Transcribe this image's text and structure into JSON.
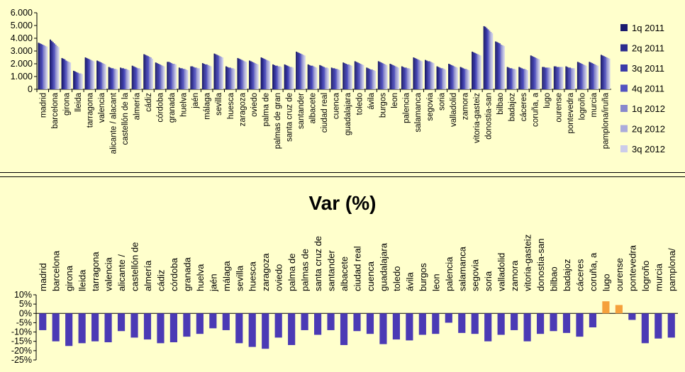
{
  "chart_data": [
    {
      "type": "bar",
      "title": "",
      "xlabel": "",
      "ylabel": "",
      "ylim": [
        0,
        6000
      ],
      "yticks": [
        "0",
        "1.000",
        "2.000",
        "3.000",
        "4.000",
        "5.000",
        "6.000"
      ],
      "legend_position": "right",
      "categories": [
        "madrid",
        "barcelona",
        "girona",
        "lleida",
        "tarragona",
        "valencia",
        "alicante / alacant",
        "castellón de la",
        "almería",
        "cádiz",
        "córdoba",
        "granada",
        "huelva",
        "jaén",
        "málaga",
        "sevilla",
        "huesca",
        "zaragoza",
        "oviedo",
        "palma de",
        "palmas de gran",
        "santa cruz de",
        "santander",
        "albacete",
        "ciudad real",
        "cuenca",
        "guadalajara",
        "toledo",
        "ávila",
        "burgos",
        "leon",
        "palencia",
        "salamanca",
        "segovia",
        "soria",
        "valladolid",
        "zamora",
        "vitoria-gasteiz",
        "donostia-san",
        "bilbao",
        "badajoz",
        "cáceres",
        "coruña, a",
        "lugo",
        "ourense",
        "pontevedra",
        "logroño",
        "murcia",
        "pamplona/iruña"
      ],
      "series": [
        {
          "name": "1q 2011",
          "color": "#1a1a6e",
          "values": [
            3650,
            3900,
            2450,
            1450,
            2500,
            2250,
            1750,
            1700,
            1850,
            2750,
            2100,
            2150,
            1700,
            1800,
            2050,
            2800,
            1800,
            2450,
            2250,
            2500,
            1950,
            1950,
            2950,
            1950,
            1900,
            1700,
            2100,
            2200,
            1700,
            2200,
            2000,
            1800,
            2500,
            2300,
            1800,
            2000,
            1750,
            2950,
            4950,
            3750,
            1750,
            1750,
            2650,
            1750,
            1800,
            1800,
            2150,
            2150,
            2700
          ]
        },
        {
          "name": "2q 2011",
          "color": "#2b2b8e",
          "values": [
            3600,
            3800,
            2400,
            1400,
            2450,
            2200,
            1700,
            1650,
            1800,
            2700,
            2050,
            2150,
            1650,
            1800,
            2000,
            2750,
            1750,
            2400,
            2200,
            2450,
            1900,
            1900,
            2900,
            1900,
            1850,
            1650,
            2050,
            2150,
            1650,
            2150,
            1950,
            1750,
            2450,
            2250,
            1750,
            1950,
            1700,
            2900,
            4900,
            3700,
            1700,
            1700,
            2600,
            1750,
            1800,
            1750,
            2100,
            2100,
            2650
          ]
        },
        {
          "name": "3q 2011",
          "color": "#3a3aa8",
          "values": [
            3550,
            3700,
            2350,
            1350,
            2400,
            2150,
            1650,
            1650,
            1750,
            2650,
            2000,
            2100,
            1650,
            1750,
            1950,
            2700,
            1700,
            2350,
            2150,
            2400,
            1850,
            1850,
            2850,
            1850,
            1800,
            1650,
            2000,
            2100,
            1600,
            2100,
            1900,
            1700,
            2400,
            2200,
            1700,
            1900,
            1650,
            2850,
            4800,
            3650,
            1650,
            1650,
            2550,
            1700,
            1750,
            1700,
            2050,
            2050,
            2600
          ]
        },
        {
          "name": "4q 2011",
          "color": "#5252c0",
          "values": [
            3500,
            3600,
            2250,
            1300,
            2350,
            2100,
            1650,
            1600,
            1700,
            2600,
            1950,
            2050,
            1600,
            1700,
            1950,
            2650,
            1700,
            2300,
            2100,
            2350,
            1850,
            1800,
            2800,
            1850,
            1750,
            1600,
            1950,
            2050,
            1550,
            2050,
            1850,
            1700,
            2350,
            2200,
            1650,
            1850,
            1600,
            2800,
            4700,
            3600,
            1650,
            1600,
            2500,
            1700,
            1750,
            1700,
            2000,
            2000,
            2550
          ]
        },
        {
          "name": "1q 2012",
          "color": "#8888cc",
          "values": [
            3450,
            3500,
            2200,
            1250,
            2300,
            2050,
            1600,
            1600,
            1650,
            2550,
            1900,
            2000,
            1600,
            1700,
            1900,
            2600,
            1650,
            2250,
            2050,
            2300,
            1800,
            1750,
            2750,
            1800,
            1700,
            1600,
            1950,
            2000,
            1550,
            2000,
            1800,
            1650,
            2300,
            2150,
            1650,
            1800,
            1600,
            2750,
            4600,
            3500,
            1600,
            1600,
            2450,
            1700,
            1750,
            1650,
            1950,
            1950,
            2500
          ]
        },
        {
          "name": "2q 2012",
          "color": "#ababdb",
          "values": [
            3400,
            3400,
            2150,
            1250,
            2250,
            2000,
            1600,
            1550,
            1650,
            2500,
            1850,
            2000,
            1550,
            1650,
            1850,
            2550,
            1650,
            2200,
            2000,
            2250,
            1800,
            1750,
            2700,
            1750,
            1700,
            1550,
            1900,
            1950,
            1500,
            1950,
            1750,
            1650,
            2250,
            2100,
            1600,
            1750,
            1550,
            2700,
            4500,
            3450,
            1600,
            1550,
            2400,
            1700,
            1750,
            1650,
            1900,
            1900,
            2450
          ]
        },
        {
          "name": "3q 2012",
          "color": "#ccccea",
          "values": [
            3350,
            3300,
            2100,
            1200,
            2200,
            1950,
            1550,
            1500,
            1600,
            2400,
            1800,
            1950,
            1500,
            1650,
            1800,
            2500,
            1600,
            2150,
            1950,
            2200,
            1750,
            1700,
            2650,
            1700,
            1650,
            1500,
            1850,
            1900,
            1450,
            1900,
            1700,
            1600,
            2200,
            2050,
            1550,
            1700,
            1500,
            2650,
            4400,
            3400,
            1550,
            1500,
            2350,
            1650,
            1750,
            1650,
            1850,
            1850,
            2400
          ]
        }
      ]
    },
    {
      "type": "bar",
      "title": "Var (%)",
      "xlabel": "",
      "ylabel": "",
      "ylim": [
        -25,
        10
      ],
      "yticks": [
        "-25%",
        "-20%",
        "-15%",
        "-10%",
        "-5%",
        "0%",
        "5%",
        "10%"
      ],
      "categories": [
        "madrid",
        "barcelona",
        "girona",
        "lleida",
        "tarragona",
        "valencia",
        "alicante /",
        "castellón de",
        "almería",
        "cádiz",
        "córdoba",
        "granada",
        "huelva",
        "jaén",
        "málaga",
        "sevilla",
        "huesca",
        "zaragoza",
        "oviedo",
        "palma de",
        "palmas de",
        "santa cruz de",
        "santander",
        "albacete",
        "ciudad real",
        "cuenca",
        "guadalajara",
        "toledo",
        "ávila",
        "burgos",
        "leon",
        "palencia",
        "salamanca",
        "segovia",
        "soria",
        "valladolid",
        "zamora",
        "vitoria-gasteiz",
        "donostia-san",
        "bilbao",
        "badajoz",
        "cáceres",
        "coruña, a",
        "lugo",
        "ourense",
        "pontevedra",
        "logroño",
        "murcia",
        "pamplona/"
      ],
      "values": [
        -9,
        -15,
        -17.5,
        -16,
        -15,
        -15.5,
        -9.5,
        -13,
        -14,
        -16,
        -15.5,
        -12.5,
        -11,
        -8,
        -9,
        -16,
        -18,
        -19,
        -13,
        -17,
        -9,
        -11.5,
        -9,
        -17,
        -9.5,
        -11,
        -16.5,
        -14,
        -14.5,
        -11.5,
        -11,
        -5,
        -10.5,
        -11,
        -15,
        -11.5,
        -9,
        -15,
        -11,
        -9.5,
        -10.5,
        -12.5,
        -7.5,
        6.5,
        4.5,
        -3.5,
        -16,
        -13.5,
        -13
      ],
      "negative_color": "#4b3ab5",
      "positive_color": "#f5a03c"
    }
  ]
}
